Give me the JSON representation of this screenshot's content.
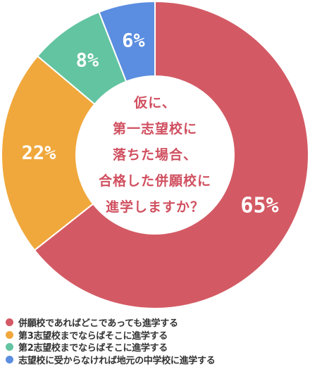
{
  "chart_data": {
    "type": "pie",
    "donut": true,
    "title_lines": [
      "仮に、",
      "第一志望校に",
      "落ちた場合、",
      "合格した併願校に",
      "進学しますか？"
    ],
    "slices": [
      {
        "label": "併願校であればどこであっても進学する",
        "value": 65,
        "display": "65%",
        "color": "#d35a64"
      },
      {
        "label": "第3志望校までならばそこに進学する",
        "value": 22,
        "display": "22%",
        "color": "#f0a83c"
      },
      {
        "label": "第2志望校までならばそこに進学する",
        "value": 8,
        "display": "8%",
        "color": "#62c4a0"
      },
      {
        "label": "志望校に受からなければ地元の中学校に進学する",
        "value": 6,
        "display": "6%",
        "color": "#5b8de0"
      }
    ],
    "legend_position": "bottom"
  }
}
